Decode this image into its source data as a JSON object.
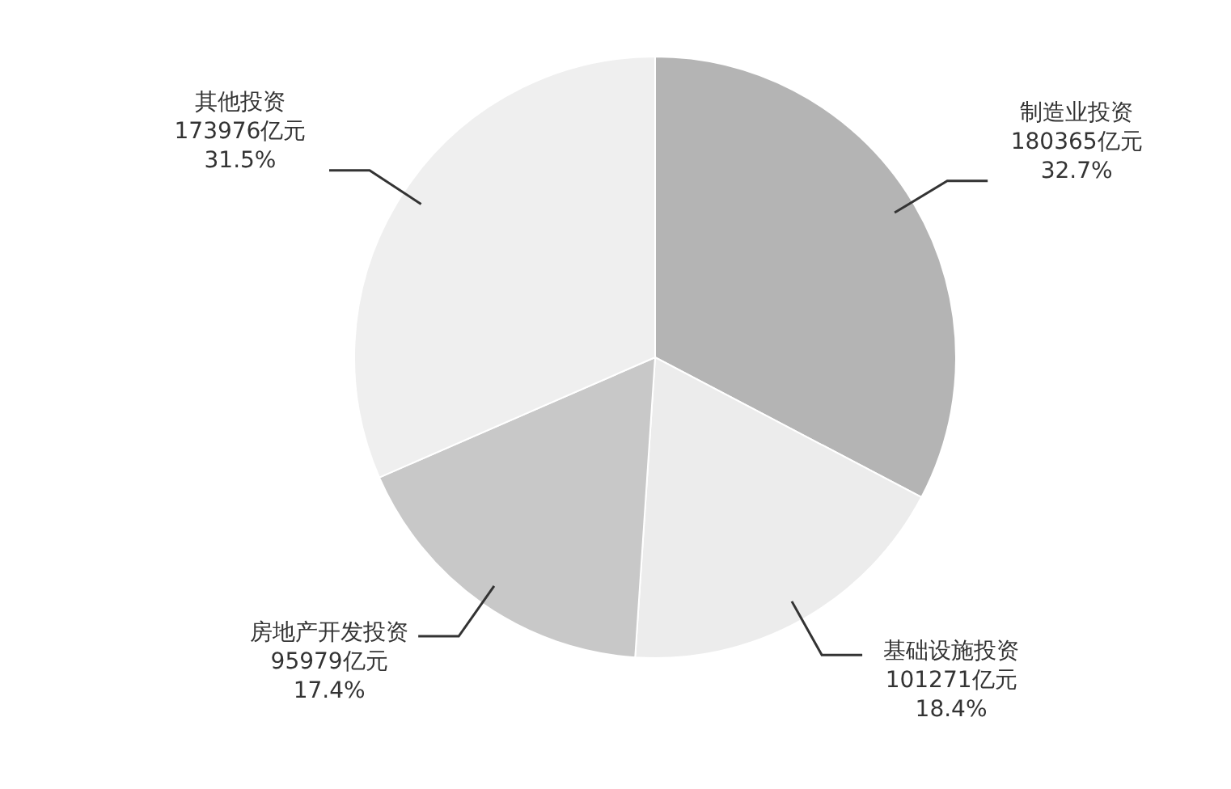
{
  "chart_data": {
    "type": "pie",
    "categories": [
      "制造业投资",
      "基础设施投资",
      "房地产开发投资",
      "其他投资"
    ],
    "values": [
      180365,
      101271,
      95979,
      173976
    ],
    "value_labels": [
      "180365亿元\n32.7%",
      "101271亿元\n18.4%",
      "95979亿元\n17.4%",
      "173976亿元\n31.5%"
    ],
    "colors": [
      "#b4b4b4",
      "#ececec",
      "#c8c8c8",
      "#efefef"
    ]
  }
}
